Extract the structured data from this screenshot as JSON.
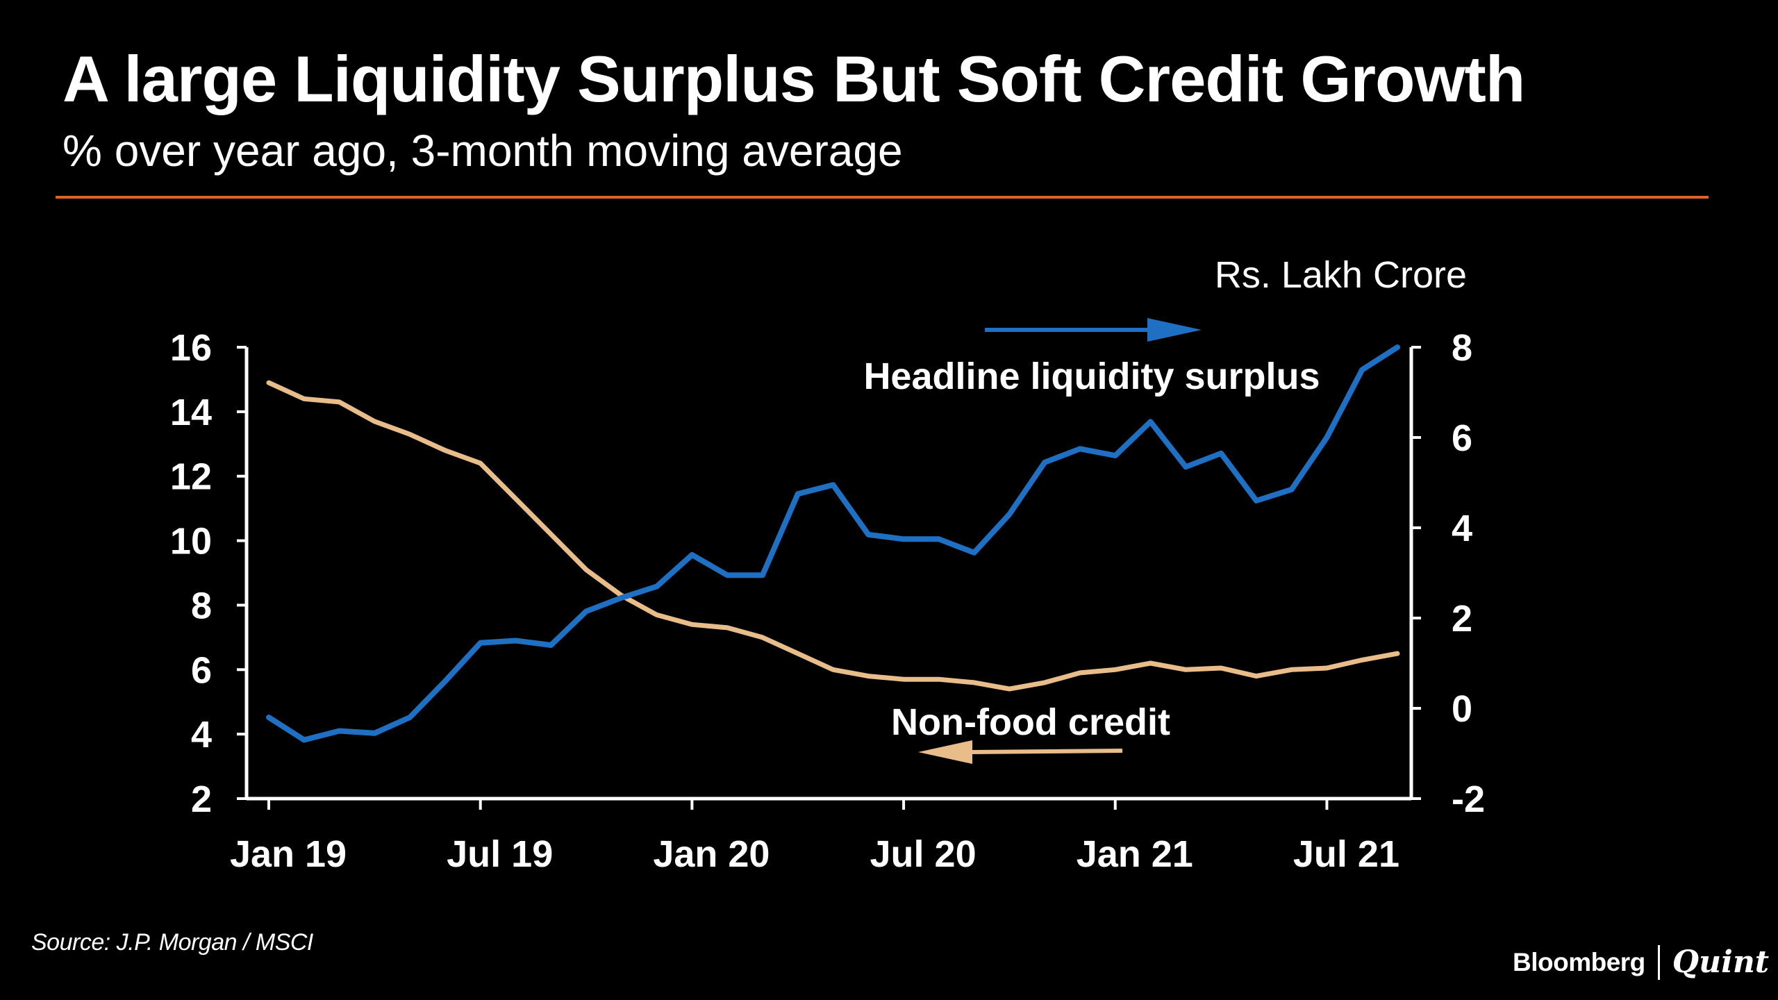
{
  "header": {
    "title": "A large Liquidity Surplus But Soft Credit Growth",
    "subtitle": "% over year ago, 3-month moving average"
  },
  "footer": {
    "source": "Source: J.P. Morgan / MSCI",
    "brand_primary": "Bloomberg",
    "brand_secondary": "Quint"
  },
  "colors": {
    "background": "#000000",
    "rule": "#e0622a",
    "liquidity_series": "#1f6fc2",
    "credit_series": "#e8bd8a",
    "axis": "#ffffff"
  },
  "chart_data": {
    "type": "line",
    "x_tick_labels": [
      "Jan 19",
      "Jul 19",
      "Jan 20",
      "Jul 20",
      "Jan 21",
      "Jul 21"
    ],
    "x_start": "Jan 19",
    "x_end": "Sep 21",
    "left_axis": {
      "label": "",
      "min": 2,
      "max": 16,
      "ticks": [
        16,
        14,
        12,
        10,
        8,
        6,
        4,
        2
      ]
    },
    "right_axis": {
      "label": "Rs. Lakh Crore",
      "min": -2,
      "max": 8,
      "ticks": [
        8,
        6,
        4,
        2,
        0,
        -2
      ]
    },
    "series": [
      {
        "name": "Headline liquidity surplus",
        "axis": "right",
        "arrow_direction": "right",
        "values": [
          -0.2,
          -0.7,
          -0.5,
          -0.55,
          -0.2,
          0.6,
          1.45,
          1.5,
          1.4,
          2.15,
          2.45,
          2.7,
          3.4,
          2.95,
          2.95,
          4.75,
          4.95,
          3.85,
          3.75,
          3.75,
          3.45,
          4.3,
          5.45,
          5.75,
          5.6,
          6.35,
          5.35,
          5.65,
          4.6,
          4.85,
          6.0,
          7.5,
          8.0
        ]
      },
      {
        "name": "Non-food credit",
        "axis": "left",
        "arrow_direction": "left",
        "values": [
          14.9,
          14.4,
          14.3,
          13.7,
          13.3,
          12.8,
          12.4,
          11.3,
          10.2,
          9.1,
          8.3,
          7.7,
          7.4,
          7.3,
          7.0,
          6.5,
          6.0,
          5.8,
          5.7,
          5.7,
          5.6,
          5.4,
          5.6,
          5.9,
          6.0,
          6.2,
          6.0,
          6.05,
          5.8,
          6.0,
          6.05,
          6.3,
          6.5
        ]
      }
    ]
  }
}
